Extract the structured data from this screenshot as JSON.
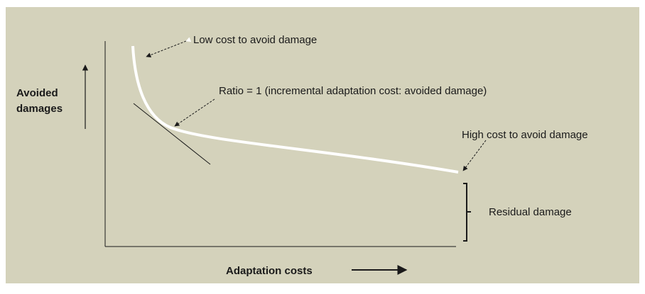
{
  "diagram": {
    "y_axis_label": [
      "Avoided",
      "damages"
    ],
    "x_axis_label": "Adaptation costs",
    "annotations": {
      "low_cost": "Low cost to avoid damage",
      "ratio": "Ratio = 1 (incremental adaptation cost: avoided damage)",
      "high_cost": "High cost to avoid damage",
      "residual": "Residual damage"
    }
  }
}
